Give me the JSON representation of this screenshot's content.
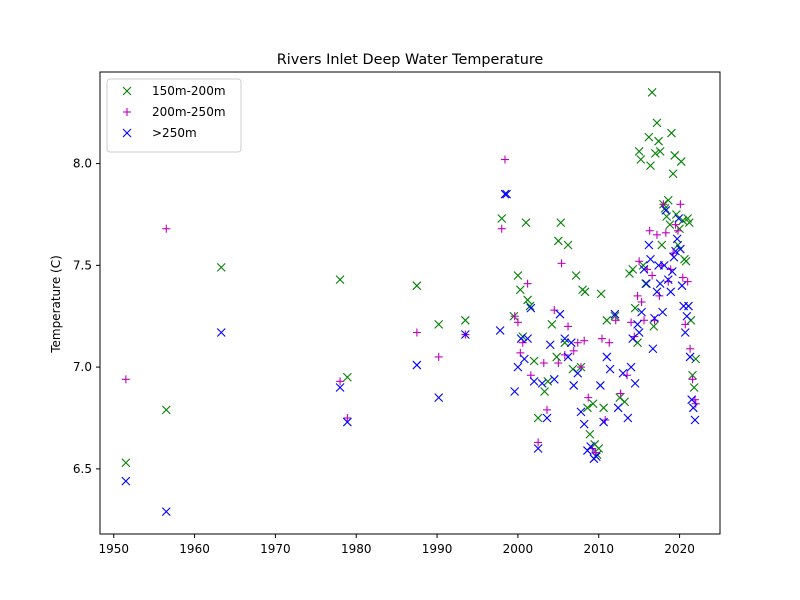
{
  "chart_data": {
    "type": "scatter",
    "title": "Rivers Inlet Deep Water Temperature",
    "xlabel": "",
    "ylabel": "Temperature (C)",
    "xlim": [
      1948.3,
      2025.0
    ],
    "ylim": [
      6.18,
      8.45
    ],
    "xticks": [
      1950,
      1960,
      1970,
      1980,
      1990,
      2000,
      2010,
      2020
    ],
    "yticks": [
      6.5,
      7.0,
      7.5,
      8.0
    ],
    "ytick_labels": [
      "6.5",
      "7.0",
      "7.5",
      "8.0"
    ],
    "grid": false,
    "legend_position": "upper-left",
    "series": [
      {
        "name": "150m-200m",
        "marker": "x",
        "color": "#008000",
        "points": [
          [
            1951.5,
            6.53
          ],
          [
            1956.5,
            6.79
          ],
          [
            1963.3,
            7.49
          ],
          [
            1978.0,
            7.43
          ],
          [
            1978.9,
            6.95
          ],
          [
            1987.5,
            7.4
          ],
          [
            1990.2,
            7.21
          ],
          [
            1993.5,
            7.23
          ],
          [
            1998.0,
            7.73
          ],
          [
            1999.5,
            7.25
          ],
          [
            2000.0,
            7.45
          ],
          [
            2000.3,
            7.38
          ],
          [
            2000.6,
            7.15
          ],
          [
            2001.0,
            7.71
          ],
          [
            2001.2,
            7.33
          ],
          [
            2001.5,
            7.3
          ],
          [
            2002.0,
            7.03
          ],
          [
            2002.5,
            6.75
          ],
          [
            2003.3,
            6.88
          ],
          [
            2003.7,
            6.93
          ],
          [
            2004.2,
            7.21
          ],
          [
            2004.8,
            7.05
          ],
          [
            2005.0,
            7.62
          ],
          [
            2005.3,
            7.71
          ],
          [
            2005.8,
            7.12
          ],
          [
            2006.2,
            7.6
          ],
          [
            2006.8,
            6.99
          ],
          [
            2007.2,
            7.45
          ],
          [
            2007.8,
            7.0
          ],
          [
            2008.0,
            7.38
          ],
          [
            2008.3,
            7.37
          ],
          [
            2008.6,
            6.8
          ],
          [
            2008.9,
            6.67
          ],
          [
            2009.3,
            6.82
          ],
          [
            2009.5,
            6.62
          ],
          [
            2009.8,
            6.57
          ],
          [
            2010.0,
            6.6
          ],
          [
            2010.3,
            7.36
          ],
          [
            2010.6,
            6.8
          ],
          [
            2011.0,
            7.23
          ],
          [
            2012.0,
            7.25
          ],
          [
            2012.6,
            6.85
          ],
          [
            2013.2,
            6.83
          ],
          [
            2013.8,
            7.46
          ],
          [
            2014.2,
            7.48
          ],
          [
            2014.5,
            7.29
          ],
          [
            2014.8,
            7.12
          ],
          [
            2015.0,
            8.06
          ],
          [
            2015.2,
            8.02
          ],
          [
            2015.5,
            7.5
          ],
          [
            2015.8,
            7.41
          ],
          [
            2016.2,
            8.13
          ],
          [
            2016.4,
            7.99
          ],
          [
            2016.6,
            8.35
          ],
          [
            2016.8,
            7.2
          ],
          [
            2017.0,
            8.05
          ],
          [
            2017.2,
            8.2
          ],
          [
            2017.4,
            8.11
          ],
          [
            2017.6,
            8.06
          ],
          [
            2017.8,
            7.6
          ],
          [
            2018.0,
            7.8
          ],
          [
            2018.2,
            7.78
          ],
          [
            2018.4,
            7.74
          ],
          [
            2018.6,
            7.82
          ],
          [
            2018.8,
            7.7
          ],
          [
            2019.0,
            8.15
          ],
          [
            2019.2,
            7.95
          ],
          [
            2019.4,
            8.04
          ],
          [
            2019.6,
            7.75
          ],
          [
            2019.8,
            7.6
          ],
          [
            2020.0,
            7.68
          ],
          [
            2020.2,
            8.01
          ],
          [
            2020.4,
            7.72
          ],
          [
            2020.6,
            7.53
          ],
          [
            2020.8,
            7.52
          ],
          [
            2021.0,
            7.73
          ],
          [
            2021.2,
            7.71
          ],
          [
            2021.4,
            7.23
          ],
          [
            2021.6,
            6.96
          ],
          [
            2021.8,
            6.9
          ],
          [
            2022.0,
            7.04
          ]
        ]
      },
      {
        "name": "200m-250m",
        "marker": "+",
        "color": "#bf00bf",
        "points": [
          [
            1951.5,
            6.94
          ],
          [
            1956.5,
            7.68
          ],
          [
            1978.0,
            6.93
          ],
          [
            1978.9,
            6.75
          ],
          [
            1987.5,
            7.17
          ],
          [
            1990.2,
            7.05
          ],
          [
            1993.5,
            7.16
          ],
          [
            1998.0,
            7.68
          ],
          [
            1998.4,
            8.02
          ],
          [
            1999.6,
            7.25
          ],
          [
            2000.0,
            7.22
          ],
          [
            2000.3,
            7.07
          ],
          [
            2000.6,
            7.12
          ],
          [
            2001.2,
            7.41
          ],
          [
            2001.6,
            6.96
          ],
          [
            2002.5,
            6.63
          ],
          [
            2003.2,
            7.02
          ],
          [
            2003.6,
            6.79
          ],
          [
            2004.5,
            7.28
          ],
          [
            2005.0,
            7.02
          ],
          [
            2005.4,
            7.51
          ],
          [
            2005.8,
            7.06
          ],
          [
            2006.2,
            7.2
          ],
          [
            2006.9,
            7.08
          ],
          [
            2007.4,
            7.12
          ],
          [
            2007.8,
            7.0
          ],
          [
            2008.2,
            7.13
          ],
          [
            2008.7,
            6.85
          ],
          [
            2009.2,
            6.6
          ],
          [
            2009.6,
            6.58
          ],
          [
            2010.4,
            7.14
          ],
          [
            2010.8,
            6.74
          ],
          [
            2011.3,
            7.12
          ],
          [
            2012.1,
            7.23
          ],
          [
            2012.7,
            6.87
          ],
          [
            2013.5,
            6.96
          ],
          [
            2014.0,
            7.22
          ],
          [
            2014.4,
            7.15
          ],
          [
            2014.8,
            7.35
          ],
          [
            2015.0,
            7.52
          ],
          [
            2015.3,
            7.32
          ],
          [
            2015.6,
            7.23
          ],
          [
            2016.0,
            7.48
          ],
          [
            2016.3,
            7.67
          ],
          [
            2016.6,
            7.45
          ],
          [
            2016.9,
            7.23
          ],
          [
            2017.2,
            7.65
          ],
          [
            2017.5,
            7.35
          ],
          [
            2017.8,
            7.5
          ],
          [
            2018.0,
            7.8
          ],
          [
            2018.3,
            7.66
          ],
          [
            2018.6,
            7.42
          ],
          [
            2018.9,
            7.48
          ],
          [
            2019.2,
            7.56
          ],
          [
            2019.5,
            7.7
          ],
          [
            2019.8,
            7.67
          ],
          [
            2020.1,
            7.8
          ],
          [
            2020.4,
            7.44
          ],
          [
            2020.7,
            7.21
          ],
          [
            2021.0,
            7.42
          ],
          [
            2021.3,
            7.09
          ],
          [
            2021.6,
            6.94
          ],
          [
            2021.9,
            6.84
          ],
          [
            2022.0,
            6.82
          ]
        ]
      },
      {
        "name": ">250m",
        "marker": "x",
        "color": "#0000ff",
        "points": [
          [
            1951.5,
            6.44
          ],
          [
            1956.5,
            6.29
          ],
          [
            1963.3,
            7.17
          ],
          [
            1978.0,
            6.9
          ],
          [
            1978.9,
            6.73
          ],
          [
            1987.5,
            7.01
          ],
          [
            1990.2,
            6.85
          ],
          [
            1993.5,
            7.16
          ],
          [
            1997.8,
            7.18
          ],
          [
            1998.4,
            7.85
          ],
          [
            1998.6,
            7.85
          ],
          [
            1999.6,
            6.88
          ],
          [
            2000.0,
            7.0
          ],
          [
            2000.4,
            7.14
          ],
          [
            2000.8,
            7.04
          ],
          [
            2001.2,
            7.14
          ],
          [
            2001.6,
            7.29
          ],
          [
            2002.0,
            6.93
          ],
          [
            2002.5,
            6.6
          ],
          [
            2003.0,
            6.92
          ],
          [
            2003.6,
            6.75
          ],
          [
            2004.0,
            7.11
          ],
          [
            2004.5,
            6.94
          ],
          [
            2005.2,
            7.26
          ],
          [
            2005.8,
            7.14
          ],
          [
            2006.2,
            7.05
          ],
          [
            2006.6,
            7.12
          ],
          [
            2006.9,
            6.91
          ],
          [
            2007.4,
            6.97
          ],
          [
            2007.8,
            6.78
          ],
          [
            2008.2,
            6.72
          ],
          [
            2008.6,
            6.59
          ],
          [
            2009.0,
            6.61
          ],
          [
            2009.4,
            6.55
          ],
          [
            2009.7,
            6.56
          ],
          [
            2010.2,
            6.91
          ],
          [
            2010.6,
            6.73
          ],
          [
            2011.0,
            7.05
          ],
          [
            2011.4,
            6.99
          ],
          [
            2012.0,
            7.26
          ],
          [
            2012.4,
            6.8
          ],
          [
            2013.0,
            6.97
          ],
          [
            2013.6,
            6.75
          ],
          [
            2014.0,
            7.0
          ],
          [
            2014.2,
            7.14
          ],
          [
            2014.5,
            6.92
          ],
          [
            2014.8,
            7.21
          ],
          [
            2015.0,
            7.17
          ],
          [
            2015.3,
            7.27
          ],
          [
            2015.6,
            7.48
          ],
          [
            2015.9,
            7.41
          ],
          [
            2016.2,
            7.6
          ],
          [
            2016.4,
            7.53
          ],
          [
            2016.7,
            7.09
          ],
          [
            2016.9,
            7.24
          ],
          [
            2017.2,
            7.37
          ],
          [
            2017.4,
            7.5
          ],
          [
            2017.6,
            7.41
          ],
          [
            2017.9,
            7.27
          ],
          [
            2018.1,
            7.5
          ],
          [
            2018.3,
            7.77
          ],
          [
            2018.6,
            7.43
          ],
          [
            2018.9,
            7.37
          ],
          [
            2019.1,
            7.47
          ],
          [
            2019.3,
            7.54
          ],
          [
            2019.5,
            7.57
          ],
          [
            2019.7,
            7.63
          ],
          [
            2019.9,
            7.73
          ],
          [
            2020.1,
            7.58
          ],
          [
            2020.3,
            7.4
          ],
          [
            2020.5,
            7.3
          ],
          [
            2020.7,
            7.17
          ],
          [
            2020.9,
            7.25
          ],
          [
            2021.1,
            7.3
          ],
          [
            2021.3,
            7.05
          ],
          [
            2021.5,
            6.84
          ],
          [
            2021.7,
            6.8
          ],
          [
            2021.9,
            6.74
          ]
        ]
      }
    ]
  }
}
